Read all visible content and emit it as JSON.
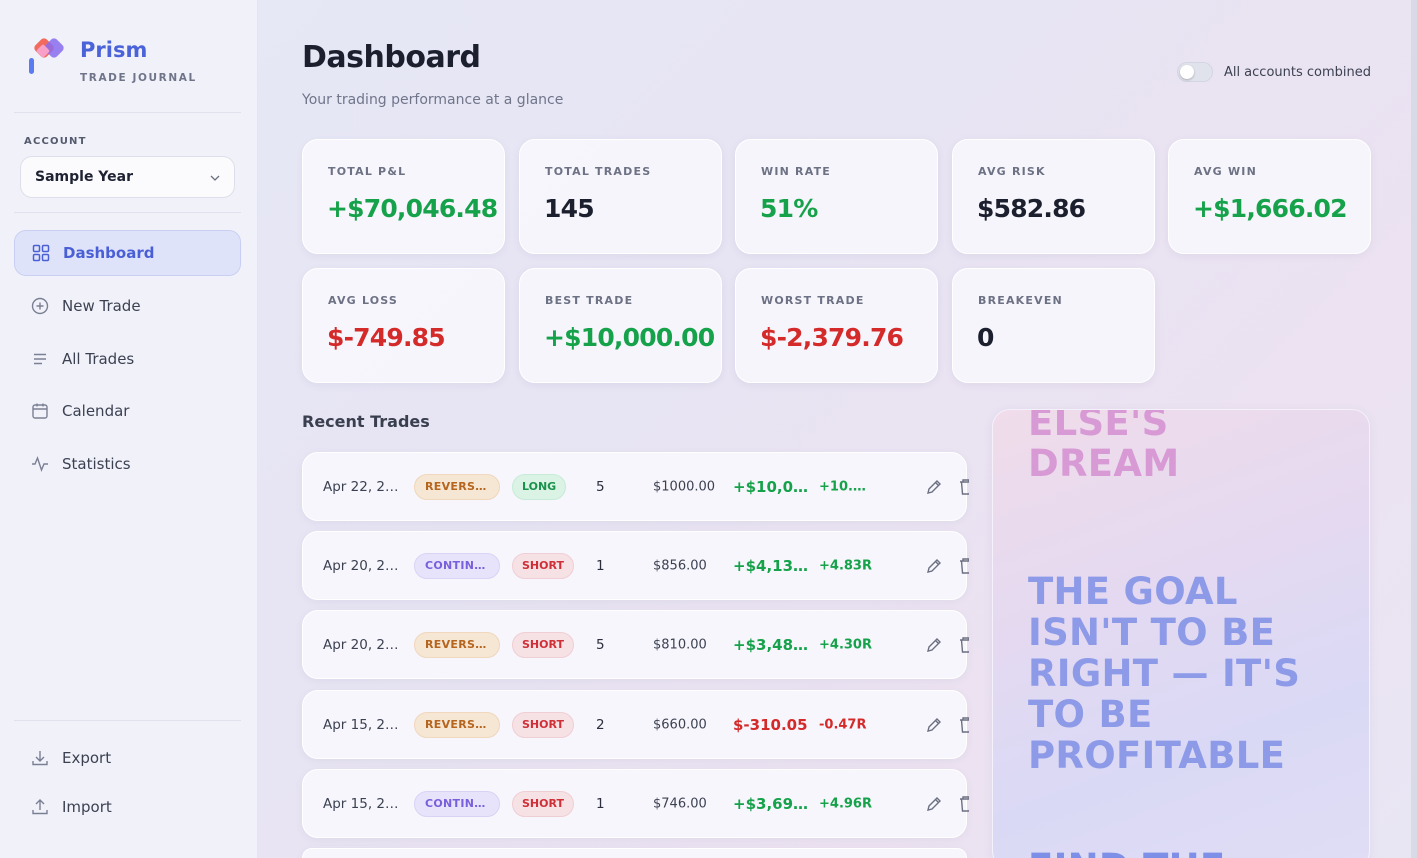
{
  "brand": {
    "name": "Prism",
    "subtitle": "TRADE JOURNAL"
  },
  "account": {
    "label": "ACCOUNT",
    "selected": "Sample Year"
  },
  "nav": [
    {
      "label": "Dashboard",
      "icon": "grid-icon",
      "active": true
    },
    {
      "label": "New Trade",
      "icon": "plus-circle-icon"
    },
    {
      "label": "All Trades",
      "icon": "list-icon"
    },
    {
      "label": "Calendar",
      "icon": "calendar-icon"
    },
    {
      "label": "Statistics",
      "icon": "activity-icon"
    }
  ],
  "footer_nav": [
    {
      "label": "Export",
      "icon": "download-icon"
    },
    {
      "label": "Import",
      "icon": "upload-icon"
    }
  ],
  "header": {
    "title": "Dashboard",
    "subtitle": "Your trading performance at a glance",
    "toggle_label": "All accounts combined",
    "toggle_on": false
  },
  "stats": [
    {
      "label": "TOTAL P&L",
      "value": "+$70,046.48",
      "tone": "pos"
    },
    {
      "label": "TOTAL TRADES",
      "value": "145",
      "tone": "neu"
    },
    {
      "label": "WIN RATE",
      "value": "51%",
      "tone": "pos"
    },
    {
      "label": "AVG RISK",
      "value": "$582.86",
      "tone": "neu"
    },
    {
      "label": "AVG WIN",
      "value": "+$1,666.02",
      "tone": "pos"
    },
    {
      "label": "AVG LOSS",
      "value": "$-749.85",
      "tone": "neg"
    },
    {
      "label": "BEST TRADE",
      "value": "+$10,000.00",
      "tone": "pos"
    },
    {
      "label": "WORST TRADE",
      "value": "$-2,379.76",
      "tone": "neg"
    },
    {
      "label": "BREAKEVEN",
      "value": "0",
      "tone": "neu"
    }
  ],
  "recent_trades": {
    "title": "Recent Trades",
    "rows": [
      {
        "date": "Apr 22, 20...",
        "setup": "REVERSAL",
        "side": "LONG",
        "qty": "5",
        "risk": "$1000.00",
        "pnl": "+$10,00...",
        "r": "+10.0...",
        "tone": "pos"
      },
      {
        "date": "Apr 20, 20...",
        "setup": "CONTINU...",
        "side": "SHORT",
        "qty": "1",
        "risk": "$856.00",
        "pnl": "+$4,135...",
        "r": "+4.83R",
        "tone": "pos"
      },
      {
        "date": "Apr 20, 20...",
        "setup": "REVERSAL",
        "side": "SHORT",
        "qty": "5",
        "risk": "$810.00",
        "pnl": "+$3,480...",
        "r": "+4.30R",
        "tone": "pos"
      },
      {
        "date": "Apr 15, 20...",
        "setup": "REVERSAL",
        "side": "SHORT",
        "qty": "2",
        "risk": "$660.00",
        "pnl": "$-310.05",
        "r": "-0.47R",
        "tone": "neg"
      },
      {
        "date": "Apr 15, 20...",
        "setup": "CONTINU...",
        "side": "SHORT",
        "qty": "1",
        "risk": "$746.00",
        "pnl": "+$3,699...",
        "r": "+4.96R",
        "tone": "pos"
      }
    ]
  },
  "quote_panel": {
    "line_top": "ELSE'S\nDREAM",
    "line_main": "THE GOAL\nISN'T TO BE\nRIGHT — IT'S\nTO BE\nPROFITABLE",
    "line_bottom": "FIND THE"
  },
  "colors": {
    "accent": "#4a63d8",
    "positive": "#16a24a",
    "negative": "#d42a2a"
  }
}
